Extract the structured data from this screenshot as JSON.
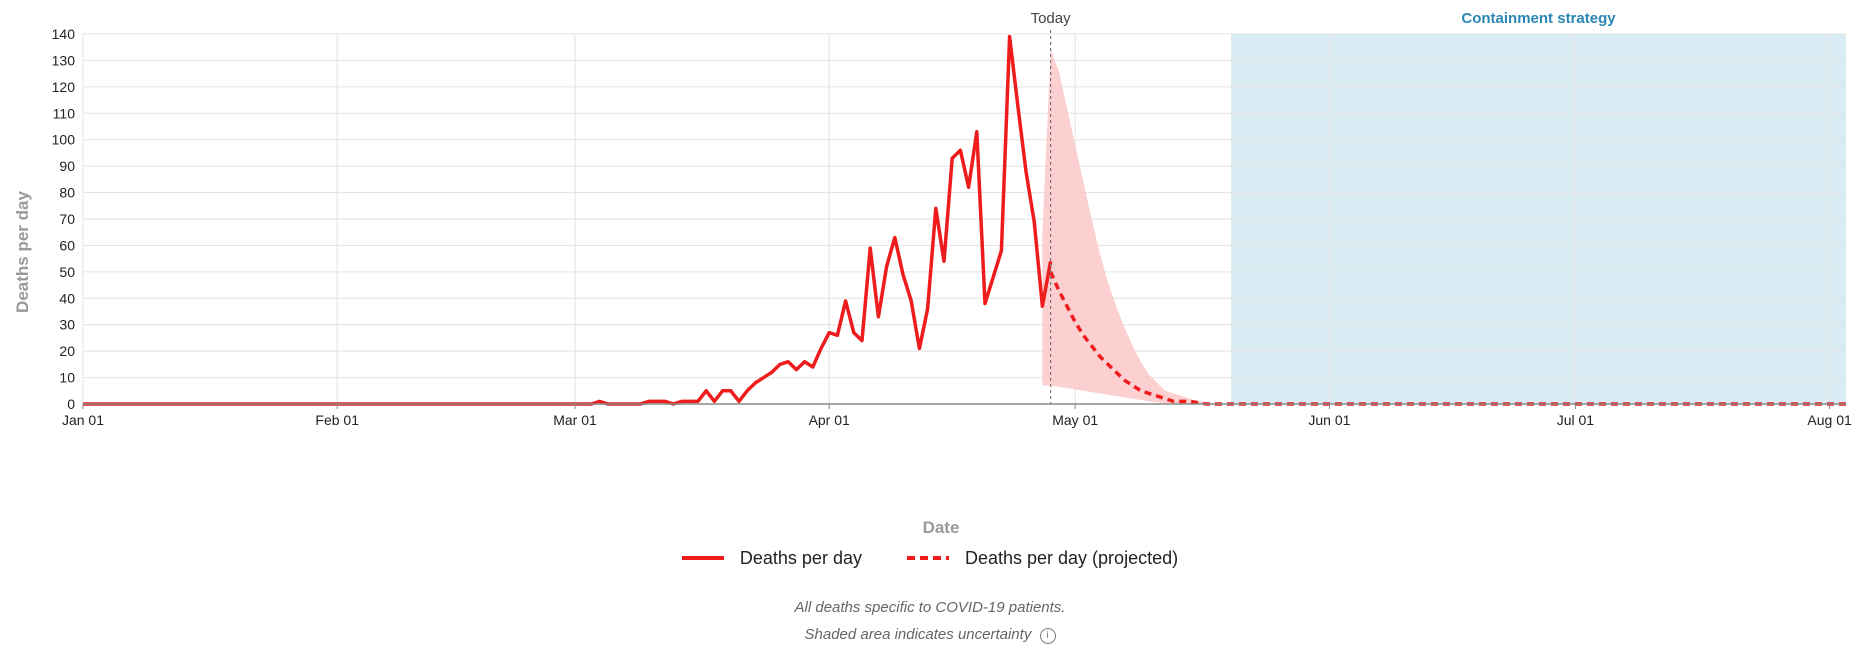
{
  "chart_data": {
    "type": "line",
    "xlabel": "Date",
    "ylabel": "Deaths per day",
    "ylim": [
      0,
      140
    ],
    "yticks": [
      0,
      10,
      20,
      30,
      40,
      50,
      60,
      70,
      80,
      90,
      100,
      110,
      120,
      130,
      140
    ],
    "xlim": [
      "2020-01-01",
      "2020-08-03"
    ],
    "xticks": [
      {
        "date": "2020-01-01",
        "label": "Jan 01"
      },
      {
        "date": "2020-02-01",
        "label": "Feb 01"
      },
      {
        "date": "2020-03-01",
        "label": "Mar 01"
      },
      {
        "date": "2020-04-01",
        "label": "Apr 01"
      },
      {
        "date": "2020-05-01",
        "label": "May 01"
      },
      {
        "date": "2020-06-01",
        "label": "Jun 01"
      },
      {
        "date": "2020-07-01",
        "label": "Jul 01"
      },
      {
        "date": "2020-08-01",
        "label": "Aug 01"
      }
    ],
    "grid": true,
    "today": {
      "date": "2020-04-28",
      "label": "Today"
    },
    "region": {
      "start": "2020-05-20",
      "end": "2020-08-03",
      "label": "Containment strategy",
      "color": "#d9ecf3"
    },
    "series": [
      {
        "name": "Deaths per day",
        "style": "solid",
        "color": "#ee1c1c",
        "points": [
          [
            "2020-01-01",
            0
          ],
          [
            "2020-03-03",
            0
          ],
          [
            "2020-03-04",
            1
          ],
          [
            "2020-03-05",
            0
          ],
          [
            "2020-03-09",
            0
          ],
          [
            "2020-03-10",
            1
          ],
          [
            "2020-03-11",
            1
          ],
          [
            "2020-03-12",
            1
          ],
          [
            "2020-03-13",
            0
          ],
          [
            "2020-03-14",
            1
          ],
          [
            "2020-03-15",
            1
          ],
          [
            "2020-03-16",
            1
          ],
          [
            "2020-03-17",
            5
          ],
          [
            "2020-03-18",
            1
          ],
          [
            "2020-03-19",
            5
          ],
          [
            "2020-03-20",
            5
          ],
          [
            "2020-03-21",
            1
          ],
          [
            "2020-03-22",
            5
          ],
          [
            "2020-03-23",
            8
          ],
          [
            "2020-03-24",
            10
          ],
          [
            "2020-03-25",
            12
          ],
          [
            "2020-03-26",
            15
          ],
          [
            "2020-03-27",
            16
          ],
          [
            "2020-03-28",
            13
          ],
          [
            "2020-03-29",
            16
          ],
          [
            "2020-03-30",
            14
          ],
          [
            "2020-03-31",
            21
          ],
          [
            "2020-04-01",
            27
          ],
          [
            "2020-04-02",
            26
          ],
          [
            "2020-04-03",
            39
          ],
          [
            "2020-04-04",
            27
          ],
          [
            "2020-04-05",
            24
          ],
          [
            "2020-04-06",
            59
          ],
          [
            "2020-04-07",
            33
          ],
          [
            "2020-04-08",
            52
          ],
          [
            "2020-04-09",
            63
          ],
          [
            "2020-04-10",
            49
          ],
          [
            "2020-04-11",
            39
          ],
          [
            "2020-04-12",
            21
          ],
          [
            "2020-04-13",
            36
          ],
          [
            "2020-04-14",
            74
          ],
          [
            "2020-04-15",
            54
          ],
          [
            "2020-04-16",
            93
          ],
          [
            "2020-04-17",
            96
          ],
          [
            "2020-04-18",
            82
          ],
          [
            "2020-04-19",
            103
          ],
          [
            "2020-04-20",
            38
          ],
          [
            "2020-04-21",
            48
          ],
          [
            "2020-04-22",
            58
          ],
          [
            "2020-04-23",
            139
          ],
          [
            "2020-04-24",
            113
          ],
          [
            "2020-04-25",
            88
          ],
          [
            "2020-04-26",
            69
          ],
          [
            "2020-04-27",
            37
          ],
          [
            "2020-04-28",
            54
          ]
        ]
      },
      {
        "name": "Deaths per day (projected)",
        "style": "dashed",
        "color": "#ee1c1c",
        "points": [
          [
            "2020-04-28",
            50
          ],
          [
            "2020-04-29",
            43
          ],
          [
            "2020-04-30",
            37
          ],
          [
            "2020-05-01",
            31
          ],
          [
            "2020-05-02",
            26
          ],
          [
            "2020-05-03",
            22
          ],
          [
            "2020-05-04",
            18
          ],
          [
            "2020-05-05",
            15
          ],
          [
            "2020-05-06",
            12
          ],
          [
            "2020-05-07",
            9
          ],
          [
            "2020-05-08",
            7
          ],
          [
            "2020-05-09",
            5
          ],
          [
            "2020-05-10",
            4
          ],
          [
            "2020-05-11",
            3
          ],
          [
            "2020-05-12",
            2
          ],
          [
            "2020-05-13",
            1
          ],
          [
            "2020-05-15",
            1
          ],
          [
            "2020-05-17",
            0
          ],
          [
            "2020-08-03",
            0
          ]
        ]
      }
    ],
    "uncertainty": {
      "color": "#fcc8c8",
      "upper": [
        [
          "2020-04-27",
          65
        ],
        [
          "2020-04-28",
          134
        ],
        [
          "2020-04-29",
          126
        ],
        [
          "2020-04-30",
          112
        ],
        [
          "2020-05-01",
          98
        ],
        [
          "2020-05-02",
          84
        ],
        [
          "2020-05-03",
          70
        ],
        [
          "2020-05-04",
          57
        ],
        [
          "2020-05-05",
          46
        ],
        [
          "2020-05-06",
          37
        ],
        [
          "2020-05-07",
          29
        ],
        [
          "2020-05-08",
          22
        ],
        [
          "2020-05-09",
          16
        ],
        [
          "2020-05-10",
          11
        ],
        [
          "2020-05-11",
          8
        ],
        [
          "2020-05-12",
          5
        ],
        [
          "2020-05-14",
          3
        ],
        [
          "2020-05-16",
          1
        ],
        [
          "2020-05-19",
          0
        ]
      ],
      "lower": [
        [
          "2020-04-27",
          7
        ],
        [
          "2020-04-28",
          7
        ],
        [
          "2020-04-30",
          6
        ],
        [
          "2020-05-02",
          5
        ],
        [
          "2020-05-04",
          4
        ],
        [
          "2020-05-06",
          3
        ],
        [
          "2020-05-08",
          2
        ],
        [
          "2020-05-10",
          1
        ],
        [
          "2020-05-13",
          0
        ],
        [
          "2020-05-19",
          0
        ]
      ]
    }
  },
  "notes": {
    "line1": "All deaths specific to COVID-19 patients.",
    "line2": "Shaded area indicates uncertainty"
  },
  "icons": {
    "info": "info-icon"
  }
}
